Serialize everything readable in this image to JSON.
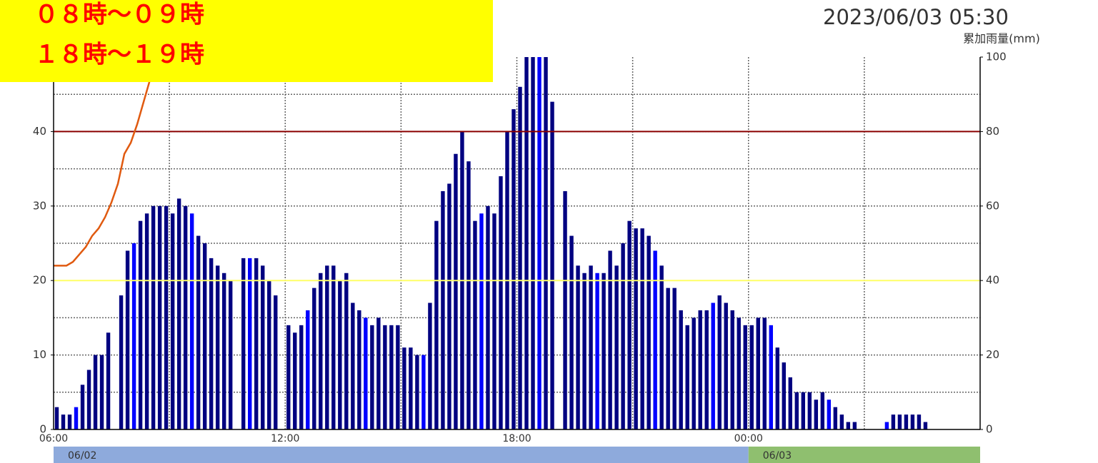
{
  "chart_data": {
    "type": "bar",
    "title": "2023/06/03 05:30",
    "y2_label": "累加雨量(mm)",
    "annotations": [
      "０８時～０９時",
      "１８時～１９時"
    ],
    "annotation_color": "#ff0000",
    "annotation_background": "#ffff00",
    "categories": [
      "06:00",
      null,
      null,
      null,
      null,
      null,
      null,
      null,
      null,
      null,
      null,
      null,
      null,
      null,
      null,
      null,
      null,
      null,
      null,
      null,
      null,
      null,
      null,
      null,
      null,
      null,
      null,
      null,
      null,
      null,
      null,
      null,
      null,
      null,
      null,
      null,
      "12:00",
      null,
      null,
      null,
      null,
      null,
      null,
      null,
      null,
      null,
      null,
      null,
      null,
      null,
      null,
      null,
      null,
      null,
      null,
      null,
      null,
      null,
      null,
      null,
      null,
      null,
      null,
      null,
      null,
      null,
      null,
      null,
      null,
      null,
      null,
      null,
      "18:00",
      null,
      null,
      null,
      null,
      null,
      null,
      null,
      null,
      null,
      null,
      null,
      null,
      null,
      null,
      null,
      null,
      null,
      null,
      null,
      null,
      null,
      null,
      null,
      null,
      null,
      null,
      null,
      null,
      null,
      null,
      null,
      null,
      null,
      null,
      null,
      "00:00",
      null,
      null,
      null,
      null,
      null,
      null,
      null,
      null,
      null,
      null,
      null,
      null,
      null,
      null,
      null,
      null,
      null,
      null,
      null,
      null,
      null,
      null,
      null,
      null,
      null,
      null,
      null,
      null,
      null,
      null,
      null,
      null,
      null,
      null,
      null
    ],
    "values": [
      3,
      2,
      2,
      3,
      6,
      8,
      10,
      10,
      13,
      0,
      18,
      24,
      25,
      28,
      29,
      30,
      30,
      30,
      29,
      31,
      30,
      29,
      26,
      25,
      23,
      22,
      21,
      20,
      0,
      23,
      23,
      23,
      22,
      20,
      18,
      0,
      14,
      13,
      14,
      16,
      19,
      21,
      22,
      22,
      20,
      21,
      17,
      16,
      15,
      14,
      15,
      14,
      14,
      14,
      11,
      11,
      10,
      10,
      17,
      28,
      32,
      33,
      37,
      40,
      36,
      28,
      29,
      30,
      29,
      34,
      40,
      43,
      46,
      50,
      50,
      50,
      50,
      44,
      0,
      32,
      26,
      22,
      21,
      22,
      21,
      21,
      24,
      22,
      25,
      28,
      27,
      27,
      26,
      24,
      22,
      19,
      19,
      16,
      14,
      15,
      16,
      16,
      17,
      18,
      17,
      16,
      15,
      14,
      14,
      15,
      15,
      14,
      11,
      9,
      7,
      5,
      5,
      5,
      4,
      5,
      4,
      3,
      2,
      1,
      1,
      0,
      0,
      0,
      0,
      1,
      2,
      2,
      2,
      2,
      2,
      1,
      null,
      null,
      null,
      null,
      null,
      null,
      null,
      null
    ],
    "colors": [
      "navy",
      "navy",
      "navy",
      "blue",
      "navy",
      "navy",
      "navy",
      "navy",
      "navy",
      "navy",
      "navy",
      "navy",
      "blue",
      "navy",
      "navy",
      "navy",
      "navy",
      "navy",
      "navy",
      "navy",
      "navy",
      "blue",
      "navy",
      "navy",
      "navy",
      "navy",
      "navy",
      "navy",
      "navy",
      "navy",
      "blue",
      "navy",
      "navy",
      "navy",
      "navy",
      "navy",
      "navy",
      "navy",
      "navy",
      "blue",
      "navy",
      "navy",
      "navy",
      "navy",
      "navy",
      "navy",
      "navy",
      "navy",
      "blue",
      "navy",
      "navy",
      "navy",
      "navy",
      "navy",
      "navy",
      "navy",
      "navy",
      "blue",
      "navy",
      "navy",
      "navy",
      "navy",
      "navy",
      "navy",
      "navy",
      "navy",
      "blue",
      "navy",
      "navy",
      "navy",
      "navy",
      "navy",
      "navy",
      "navy",
      "navy",
      "blue",
      "navy",
      "navy",
      "navy",
      "navy",
      "navy",
      "navy",
      "navy",
      "navy",
      "blue",
      "navy",
      "navy",
      "navy",
      "navy",
      "navy",
      "navy",
      "navy",
      "navy",
      "blue",
      "navy",
      "navy",
      "navy",
      "navy",
      "navy",
      "navy",
      "navy",
      "navy",
      "blue",
      "navy",
      "navy",
      "navy",
      "navy",
      "navy",
      "navy",
      "navy",
      "navy",
      "blue",
      "navy",
      "navy",
      "navy",
      "navy",
      "navy",
      "navy",
      "navy",
      "navy",
      "blue",
      "navy",
      "navy",
      "navy",
      "navy",
      "navy",
      "navy",
      "navy",
      "navy",
      "blue",
      "navy",
      "navy",
      "navy",
      "navy",
      "navy",
      "navy",
      "navy",
      "navy",
      "blue",
      "navy",
      "navy",
      "navy",
      "navy",
      "navy"
    ],
    "line": {
      "axis": "y2",
      "color": "#e05a10",
      "values": [
        44,
        44,
        44,
        45,
        47,
        49,
        52,
        54,
        57,
        61,
        66,
        74,
        77,
        82,
        88,
        94,
        100
      ]
    },
    "ylim": [
      0,
      50
    ],
    "yticks": [
      0,
      10,
      20,
      30,
      40
    ],
    "y2lim": [
      0,
      100
    ],
    "y2ticks": [
      0,
      20,
      40,
      60,
      80,
      100
    ],
    "ygrid": [
      5,
      10,
      15,
      20,
      25,
      30,
      35,
      40,
      45
    ],
    "xgrid": [
      18,
      36,
      54,
      72,
      90,
      108,
      126
    ],
    "reference_lines": [
      {
        "value": 40,
        "color": "#8b0000"
      },
      {
        "value": 20,
        "color": "#ffff66"
      }
    ],
    "date_band": [
      {
        "label": "06/02",
        "from": 0,
        "to": 108,
        "color": "#8eaadc"
      },
      {
        "label": "06/03",
        "from": 108,
        "to": 144,
        "color": "#8fbf6f"
      }
    ]
  }
}
